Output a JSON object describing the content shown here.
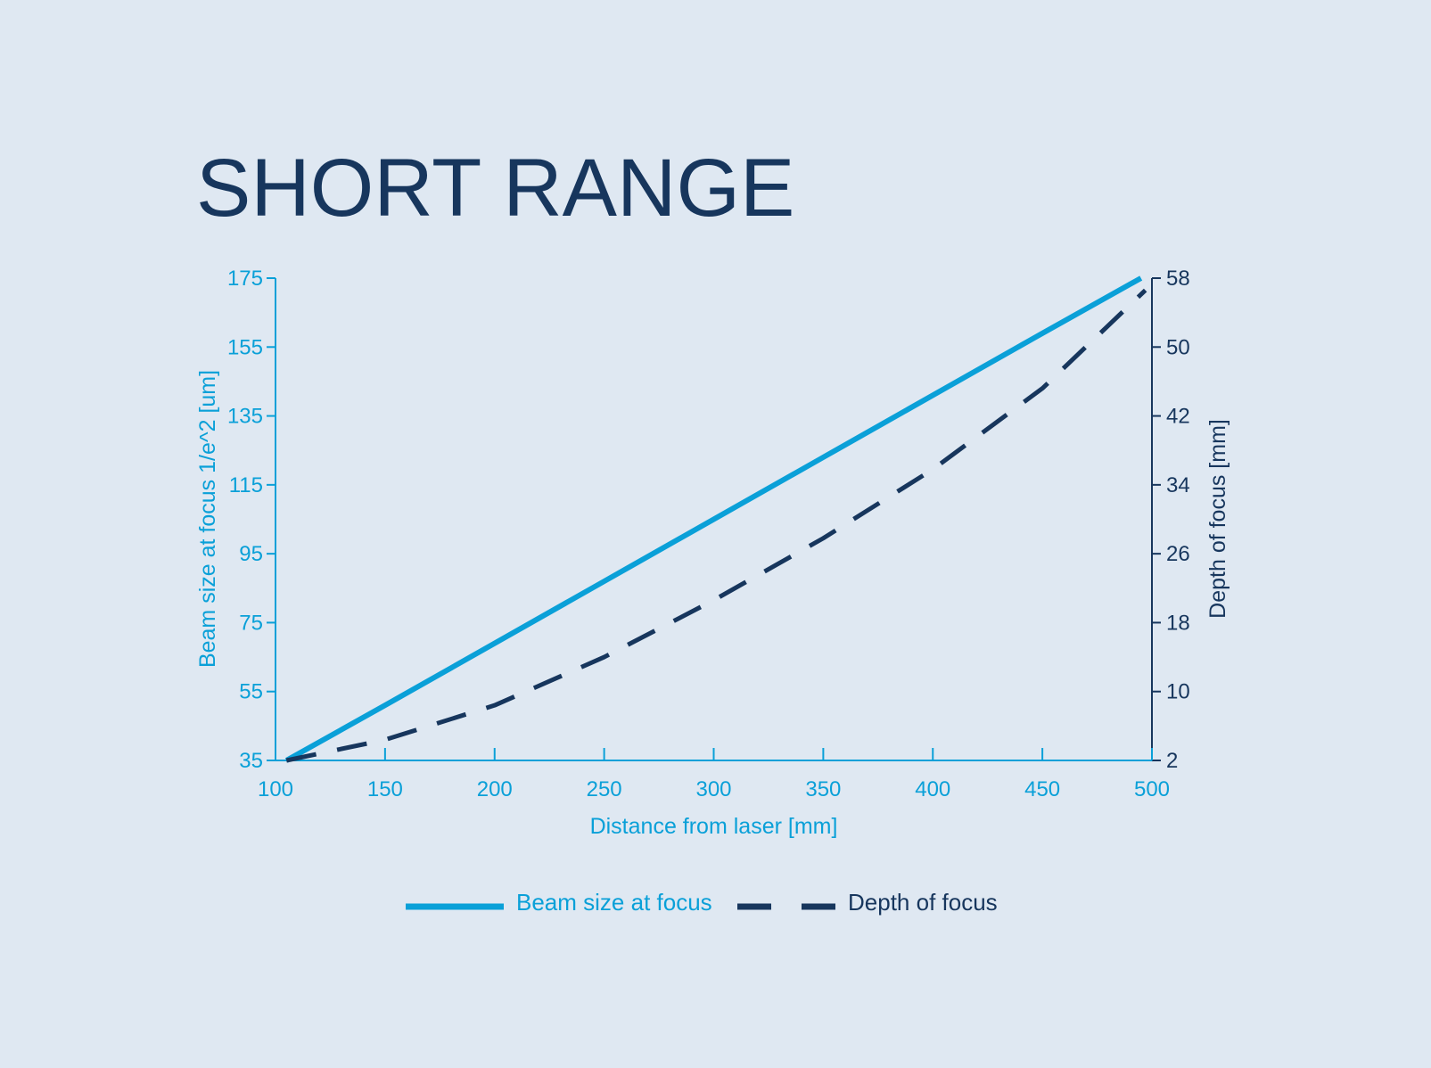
{
  "chart_data": {
    "type": "line",
    "title": "SHORT RANGE",
    "xlabel": "Distance from laser [mm]",
    "ylabel_left": "Beam size at focus 1/e^2 [um]",
    "ylabel_right": "Depth of focus [mm]",
    "xlim": [
      100,
      500
    ],
    "ylim_left": [
      35,
      175
    ],
    "ylim_right": [
      2,
      58
    ],
    "x_ticks": [
      100,
      150,
      200,
      250,
      300,
      350,
      400,
      450,
      500
    ],
    "y_left_ticks": [
      35,
      55,
      75,
      95,
      115,
      135,
      155,
      175
    ],
    "y_right_ticks": [
      2,
      10,
      18,
      26,
      34,
      42,
      50,
      58
    ],
    "grid": false,
    "legend_position": "bottom-center",
    "colors": {
      "background": "#dfe8f2",
      "title": "#17365d",
      "beam": "#0aa0d8",
      "depth": "#17365d",
      "left_axis": "#0aa0d8",
      "right_axis": "#17365d"
    },
    "series": [
      {
        "name": "Beam size at focus",
        "axis": "left",
        "style": "solid",
        "x": [
          105,
          150,
          200,
          250,
          300,
          350,
          400,
          450,
          495
        ],
        "values": [
          35,
          51,
          69,
          87,
          105,
          123,
          141,
          159,
          175
        ]
      },
      {
        "name": "Depth of focus",
        "axis": "right",
        "style": "dashed",
        "x": [
          105,
          150,
          200,
          250,
          300,
          350,
          400,
          450,
          497
        ],
        "values": [
          2.0,
          4.4,
          8.4,
          14.0,
          20.6,
          27.8,
          35.8,
          45.2,
          56.6
        ]
      }
    ]
  }
}
